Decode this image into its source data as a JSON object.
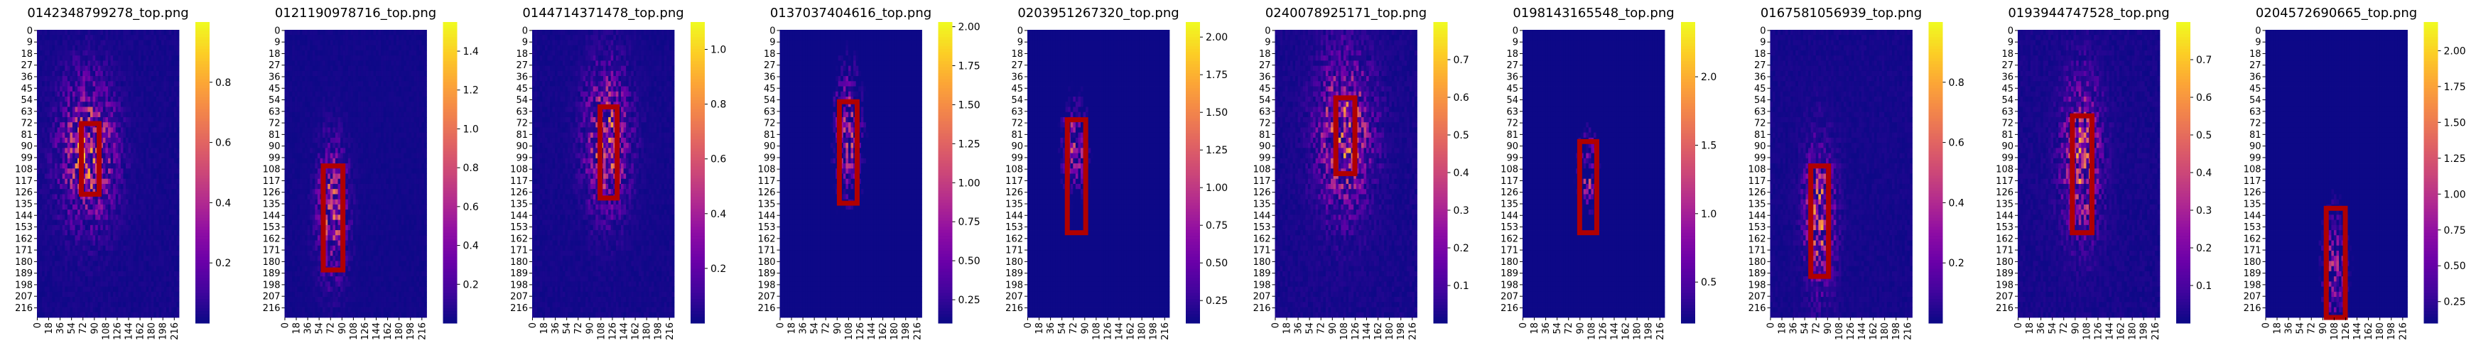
{
  "chart_data": {
    "type": "heatmap",
    "colormap": "plasma",
    "box_color": "#b00000",
    "y_ticks": [
      "0",
      "9",
      "18",
      "27",
      "36",
      "45",
      "54",
      "63",
      "72",
      "81",
      "90",
      "99",
      "108",
      "117",
      "126",
      "135",
      "144",
      "153",
      "162",
      "171",
      "180",
      "189",
      "198",
      "207",
      "216"
    ],
    "x_ticks": [
      "0",
      "18",
      "36",
      "54",
      "72",
      "90",
      "108",
      "126",
      "144",
      "162",
      "180",
      "198",
      "216"
    ],
    "panels": [
      {
        "title": "0142348799278_top.png",
        "cb_ticks": [
          "0.2",
          "0.4",
          "0.6",
          "0.8"
        ],
        "cb_vmin": 0.0,
        "cb_vmax": 1.0,
        "box": {
          "x0": 70,
          "x1": 98,
          "y0": 73,
          "y1": 128
        },
        "hot": {
          "cx": 80,
          "cy": 95,
          "sx": 40,
          "sy": 50,
          "amp": 0.9
        }
      },
      {
        "title": "0121190978716_top.png",
        "cb_ticks": [
          "0.2",
          "0.4",
          "0.6",
          "0.8",
          "1.0",
          "1.2",
          "1.4"
        ],
        "cb_vmin": 0.0,
        "cb_vmax": 1.55,
        "box": {
          "x0": 61,
          "x1": 92,
          "y0": 106,
          "y1": 187
        },
        "hot": {
          "cx": 75,
          "cy": 140,
          "sx": 22,
          "sy": 45,
          "amp": 1.2
        }
      },
      {
        "title": "0144714371478_top.png",
        "cb_ticks": [
          "0.2",
          "0.4",
          "0.6",
          "0.8",
          "1.0"
        ],
        "cb_vmin": 0.0,
        "cb_vmax": 1.1,
        "box": {
          "x0": 107,
          "x1": 134,
          "y0": 60,
          "y1": 131
        },
        "hot": {
          "cx": 118,
          "cy": 85,
          "sx": 32,
          "sy": 50,
          "amp": 0.95
        }
      },
      {
        "title": "0137037404616_top.png",
        "cb_ticks": [
          "0.25",
          "0.50",
          "0.75",
          "1.00",
          "1.25",
          "1.50",
          "1.75",
          "2.00"
        ],
        "cb_vmin": 0.1,
        "cb_vmax": 2.03,
        "box": {
          "x0": 94,
          "x1": 122,
          "y0": 56,
          "y1": 135
        },
        "hot": {
          "cx": 108,
          "cy": 80,
          "sx": 20,
          "sy": 45,
          "amp": 1.4
        }
      },
      {
        "title": "0203951267320_top.png",
        "cb_ticks": [
          "0.25",
          "0.50",
          "0.75",
          "1.00",
          "1.25",
          "1.50",
          "1.75",
          "2.00"
        ],
        "cb_vmin": 0.1,
        "cb_vmax": 2.1,
        "box": {
          "x0": 63,
          "x1": 92,
          "y0": 70,
          "y1": 158
        },
        "hot": {
          "cx": 75,
          "cy": 90,
          "sx": 18,
          "sy": 30,
          "amp": 1.5
        }
      },
      {
        "title": "0240078925171_top.png",
        "cb_ticks": [
          "0.1",
          "0.2",
          "0.3",
          "0.4",
          "0.5",
          "0.6",
          "0.7"
        ],
        "cb_vmin": 0.0,
        "cb_vmax": 0.8,
        "box": {
          "x0": 96,
          "x1": 126,
          "y0": 53,
          "y1": 112
        },
        "hot": {
          "cx": 110,
          "cy": 80,
          "sx": 40,
          "sy": 55,
          "amp": 0.7
        }
      },
      {
        "title": "0198143165548_top.png",
        "cb_ticks": [
          "0.5",
          "1.0",
          "1.5",
          "2.0"
        ],
        "cb_vmin": 0.2,
        "cb_vmax": 2.4,
        "box": {
          "x0": 90,
          "x1": 117,
          "y0": 87,
          "y1": 158
        },
        "hot": {
          "cx": 103,
          "cy": 110,
          "sx": 15,
          "sy": 30,
          "amp": 1.6
        }
      },
      {
        "title": "0167581056939_top.png",
        "cb_ticks": [
          "0.2",
          "0.4",
          "0.6",
          "0.8"
        ],
        "cb_vmin": 0.0,
        "cb_vmax": 1.0,
        "box": {
          "x0": 64,
          "x1": 92,
          "y0": 106,
          "y1": 192
        },
        "hot": {
          "cx": 78,
          "cy": 145,
          "sx": 22,
          "sy": 50,
          "amp": 0.85
        }
      },
      {
        "title": "0193944747528_top.png",
        "cb_ticks": [
          "0.1",
          "0.2",
          "0.3",
          "0.4",
          "0.5",
          "0.6",
          "0.7"
        ],
        "cb_vmin": 0.0,
        "cb_vmax": 0.8,
        "box": {
          "x0": 86,
          "x1": 117,
          "y0": 67,
          "y1": 158
        },
        "hot": {
          "cx": 100,
          "cy": 100,
          "sx": 28,
          "sy": 55,
          "amp": 0.7
        }
      },
      {
        "title": "0204572690665_top.png",
        "cb_ticks": [
          "0.25",
          "0.50",
          "0.75",
          "1.00",
          "1.25",
          "1.50",
          "1.75",
          "2.00"
        ],
        "cb_vmin": 0.1,
        "cb_vmax": 2.2,
        "box": {
          "x0": 96,
          "x1": 126,
          "y0": 139,
          "y1": 224
        },
        "hot": {
          "cx": 110,
          "cy": 185,
          "sx": 18,
          "sy": 40,
          "amp": 1.3
        }
      }
    ]
  }
}
